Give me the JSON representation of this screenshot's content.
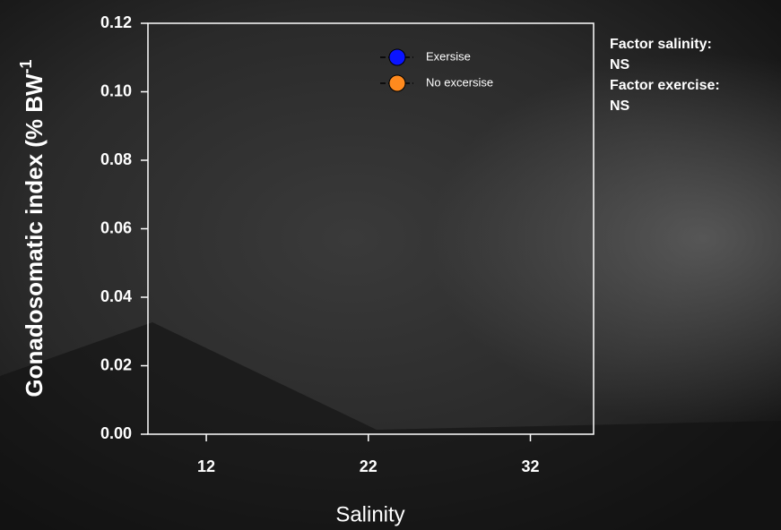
{
  "chart_data": {
    "type": "scatter",
    "xlabel": "Salinity",
    "ylabel": {
      "text": "Gonadosomatic index (% BW",
      "superscript": "-1"
    },
    "x": [],
    "series": [
      {
        "name": "Exersise",
        "color": "#0a14ff",
        "values": []
      },
      {
        "name": "No excersise",
        "color": "#ff8a1e",
        "values": []
      }
    ],
    "xlim": [
      8.4,
      35.9
    ],
    "xticks": [
      12,
      22,
      32
    ],
    "ylim": [
      0,
      0.12
    ],
    "yticks": [
      {
        "value": 0,
        "label": "0.00"
      },
      {
        "value": 0.02,
        "label": "0.02"
      },
      {
        "value": 0.04,
        "label": "0.04"
      },
      {
        "value": 0.06,
        "label": "0.06"
      },
      {
        "value": 0.08,
        "label": "0.08"
      },
      {
        "value": 0.1,
        "label": "0.10"
      },
      {
        "value": 0.12,
        "label": "0.12"
      }
    ],
    "annotations": [
      "Factor salinity:",
      "NS",
      "Factor exercise:",
      "NS"
    ],
    "grid": false
  }
}
